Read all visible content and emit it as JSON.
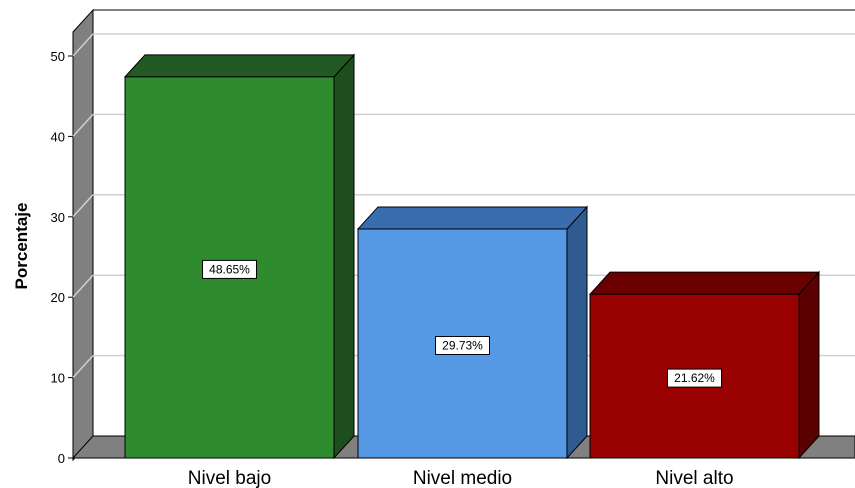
{
  "chart_data": {
    "type": "bar",
    "categories": [
      "Nivel bajo",
      "Nivel medio",
      "Nivel alto"
    ],
    "values": [
      48.65,
      29.73,
      21.62
    ],
    "data_labels": [
      "48.65%",
      "29.73%",
      "21.62%"
    ],
    "title": "",
    "xlabel": "",
    "ylabel": "Porcentaje",
    "ylim": [
      0,
      50
    ],
    "yticks": [
      "0",
      "10",
      "20",
      "30",
      "40",
      "50"
    ],
    "grid": true,
    "legend": "none",
    "style": "3d",
    "colors": [
      "#2e8b2e",
      "#5599e4",
      "#990000"
    ],
    "side_colors": [
      "#1e4d1e",
      "#2f5b91",
      "#5a0000"
    ],
    "top_colors": [
      "#235a23",
      "#3a6db0",
      "#6b0000"
    ],
    "wall_color": "#808080",
    "grid_color": "#d0d0d0"
  }
}
